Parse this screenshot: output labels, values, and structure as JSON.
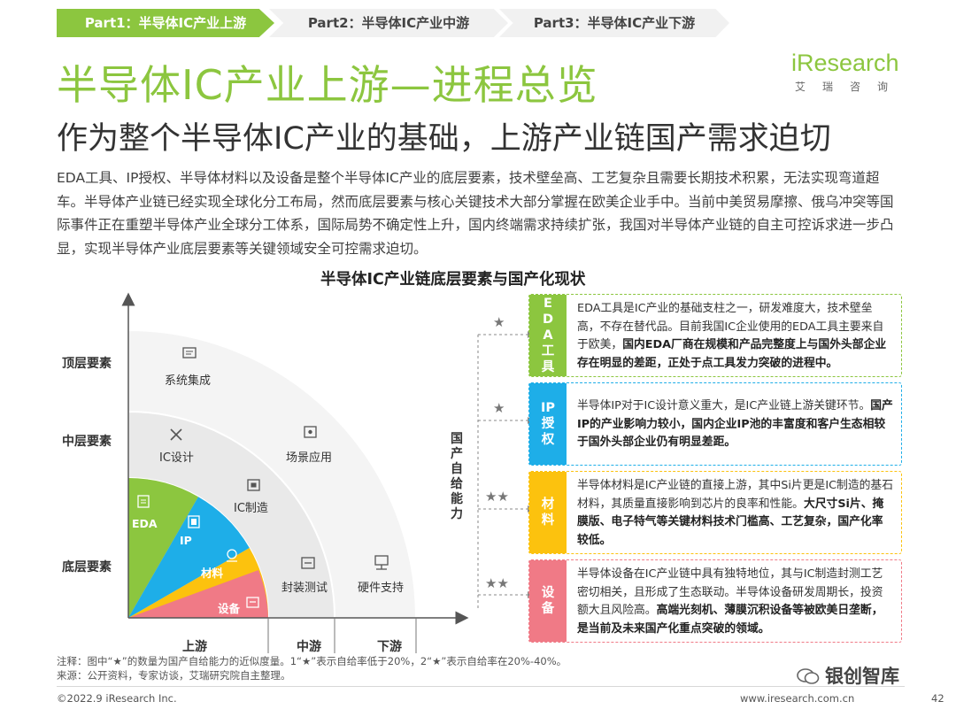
{
  "tabs": [
    "Part1：半导体IC产业上游",
    "Part2：半导体IC产业中游",
    "Part3：半导体IC产业下游"
  ],
  "title": "半导体IC产业上游—进程总览",
  "subtitle": "作为整个半导体IC产业的基础，上游产业链国产需求迫切",
  "logo": {
    "text": "iResearch",
    "sub": "艾瑞咨询"
  },
  "intro": "EDA工具、IP授权、半导体材料以及设备是整个半导体IC产业的底层要素，技术壁垒高、工艺复杂且需要长期技术积累，无法实现弯道超车。半导体产业链已经实现全球化分工布局，然而底层要素与核心关键技术大部分掌握在欧美企业手中。当前中美贸易摩擦、俄乌冲突等国际事件正在重塑半导体产业全球分工体系，国际局势不确定性上升，国内终端需求持续扩张，我国对半导体产业链的自主可控诉求进一步凸显，实现半导体产业底层要素等关键领域安全可控需求迫切。",
  "chart_title": "半导体IC产业链底层要素与国产化现状",
  "diagram": {
    "levels": [
      "顶层要素",
      "中层要素",
      "底层要素"
    ],
    "stages": [
      "上游",
      "中游",
      "下游"
    ],
    "vertical_axis": "国产自给能力",
    "regions": {
      "top": [
        "系统集成"
      ],
      "mid": [
        "IC设计",
        "场景应用"
      ],
      "inner": [
        "IC制造",
        "封装测试",
        "硬件支持"
      ],
      "core": [
        "EDA",
        "IP",
        "材料",
        "设备"
      ]
    },
    "colors": {
      "eda": "#8cc63f",
      "ip": "#1eaee8",
      "material": "#fcc20e",
      "device": "#f07a86"
    }
  },
  "cards": [
    {
      "tag": "EDA工具",
      "stars": "★",
      "color": "#8cc63f",
      "text": "EDA工具是IC产业的基础支柱之一，研发难度大，技术壁垒高，不存在替代品。目前我国IC企业使用的EDA工具主要来自于欧美，",
      "bold": "国内EDA厂商在规模和产品完整度上与国外头部企业存在明显的差距，正处于点工具发力突破的进程中。"
    },
    {
      "tag": "IP授权",
      "stars": "★",
      "color": "#1eaee8",
      "text": "半导体IP对于IC设计意义重大，是IC产业链上游关键环节。",
      "bold": "国产IP的产业影响力较小，国内企业IP池的丰富度和客户生态相较于国外头部企业仍有明显差距。"
    },
    {
      "tag": "材料",
      "stars": "★★",
      "color": "#fcc20e",
      "text": "半导体材料是IC产业链的直接上游，其中Si片更是IC制造的基石材料，其质量直接影响到芯片的良率和性能。",
      "bold": "大尺寸Si片、掩膜版、电子特气等关键材料技术门槛高、工艺复杂，国产化率较低。"
    },
    {
      "tag": "设备",
      "stars": "★★",
      "color": "#f07a86",
      "text": "半导体设备在IC产业链中具有独特地位，其与IC制造封测工艺密切相关，且形成了生态联动。半导体设备研发周期长，投资额大且风险高。",
      "bold": "高端光刻机、薄膜沉积设备等被欧美日垄断，是当前及未来国产化重点突破的领域。"
    }
  ],
  "notes": [
    "注释：图中“★”的数量为国产自给能力的近似度量。1“★”表示自给率低于20%，2“★”表示自给率在20%-40%。",
    "来源：公开资料，专家访谈，艾瑞研究院自主整理。"
  ],
  "footer": {
    "left": "©2022.9 iResearch Inc.",
    "right": "www.iresearch.com.cn",
    "page": "42"
  },
  "watermark": "银创智库"
}
